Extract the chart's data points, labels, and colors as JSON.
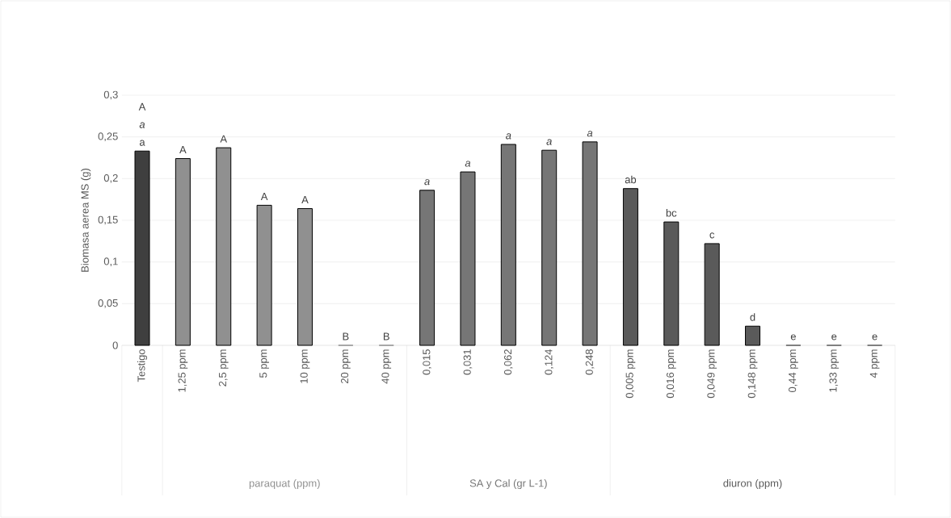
{
  "chart_data": {
    "type": "bar",
    "ylabel": "Biomasa aerea MS (g)",
    "categories": [
      "Testigo",
      "1,25 ppm",
      "2,5 ppm",
      "5 ppm",
      "10 ppm",
      "20 ppm",
      "40 ppm",
      "0,015",
      "0,031",
      "0,062",
      "0,124",
      "0,248",
      "0,005 ppm",
      "0,016 ppm",
      "0,049 ppm",
      "0,148 ppm",
      "0,44 ppm",
      "1,33 ppm",
      "4 ppm"
    ],
    "series": [
      {
        "color": "#3f3f3f",
        "values": [
          0.233,
          null,
          null,
          null,
          null,
          null,
          null,
          null,
          null,
          null,
          null,
          null,
          null,
          null,
          null,
          null,
          null,
          null,
          null
        ]
      },
      {
        "name": "paraquat (ppm)",
        "color": "#909090",
        "values": [
          null,
          0.224,
          0.237,
          0.168,
          0.164,
          0,
          0,
          null,
          null,
          null,
          null,
          null,
          null,
          null,
          null,
          null,
          null,
          null,
          null
        ]
      },
      {
        "name": "SA y Cal  (gr L-1)",
        "color": "#767676",
        "values": [
          null,
          null,
          null,
          null,
          null,
          null,
          null,
          0.186,
          0.208,
          0.241,
          0.234,
          0.244,
          null,
          null,
          null,
          null,
          null,
          null,
          null
        ]
      },
      {
        "name": "diuron (ppm)",
        "color": "#5a5a5a",
        "values": [
          null,
          null,
          null,
          null,
          null,
          null,
          null,
          null,
          null,
          null,
          null,
          null,
          0.188,
          0.148,
          0.122,
          0.023,
          0,
          0,
          0
        ]
      }
    ],
    "ylim": [
      0,
      0.3
    ],
    "yticks": [
      {
        "value": 0,
        "label": "0"
      },
      {
        "value": 0.05,
        "label": "0,05"
      },
      {
        "value": 0.1,
        "label": "0,1"
      },
      {
        "value": 0.15,
        "label": "0,15"
      },
      {
        "value": 0.2,
        "label": "0,2"
      },
      {
        "value": 0.25,
        "label": "0,25"
      },
      {
        "value": 0.3,
        "label": "0,3"
      }
    ],
    "grid": "y",
    "annotations": [
      {
        "text": "a",
        "x": "Testigo",
        "y": 0.233
      },
      "*a*",
      "A",
      {
        "text": "A",
        "x": "1,25 ppm",
        "y": 0.224
      },
      {
        "text": "A",
        "x": "2,5 ppm",
        "y": 0.237
      },
      {
        "text": "A",
        "x": "5 ppm",
        "y": 0.168
      },
      {
        "text": "A",
        "x": "10 ppm",
        "y": 0.164
      },
      {
        "text": "B",
        "x": "20 ppm",
        "y": 0
      },
      {
        "text": "B",
        "x": "40 ppm",
        "y": 0
      },
      {
        "text": "*a*",
        "x": "0,015",
        "y": 0.186
      },
      {
        "text": "*a*",
        "x": "0,031",
        "y": 0.208
      },
      {
        "text": "*a*",
        "x": "0,062",
        "y": 0.241
      },
      {
        "text": "*a*",
        "x": "0,124",
        "y": 0.234
      },
      {
        "text": "*a*",
        "x": "0,248",
        "y": 0.244
      },
      {
        "text": "ab",
        "x": "0,005 ppm",
        "y": 0.188
      },
      {
        "text": "bc",
        "x": "0,016 ppm",
        "y": 0.148
      },
      {
        "text": "c",
        "x": "0,049 ppm",
        "y": 0.122
      },
      {
        "text": "d",
        "x": "0,148 ppm",
        "y": 0.023
      },
      {
        "text": "e",
        "x": "0,44 ppm",
        "y": 0
      },
      {
        "text": "e",
        "x": "1,33 ppm",
        "y": 0
      },
      {
        "text": "e",
        "x": "4 ppm",
        "y": 0
      }
    ]
  }
}
